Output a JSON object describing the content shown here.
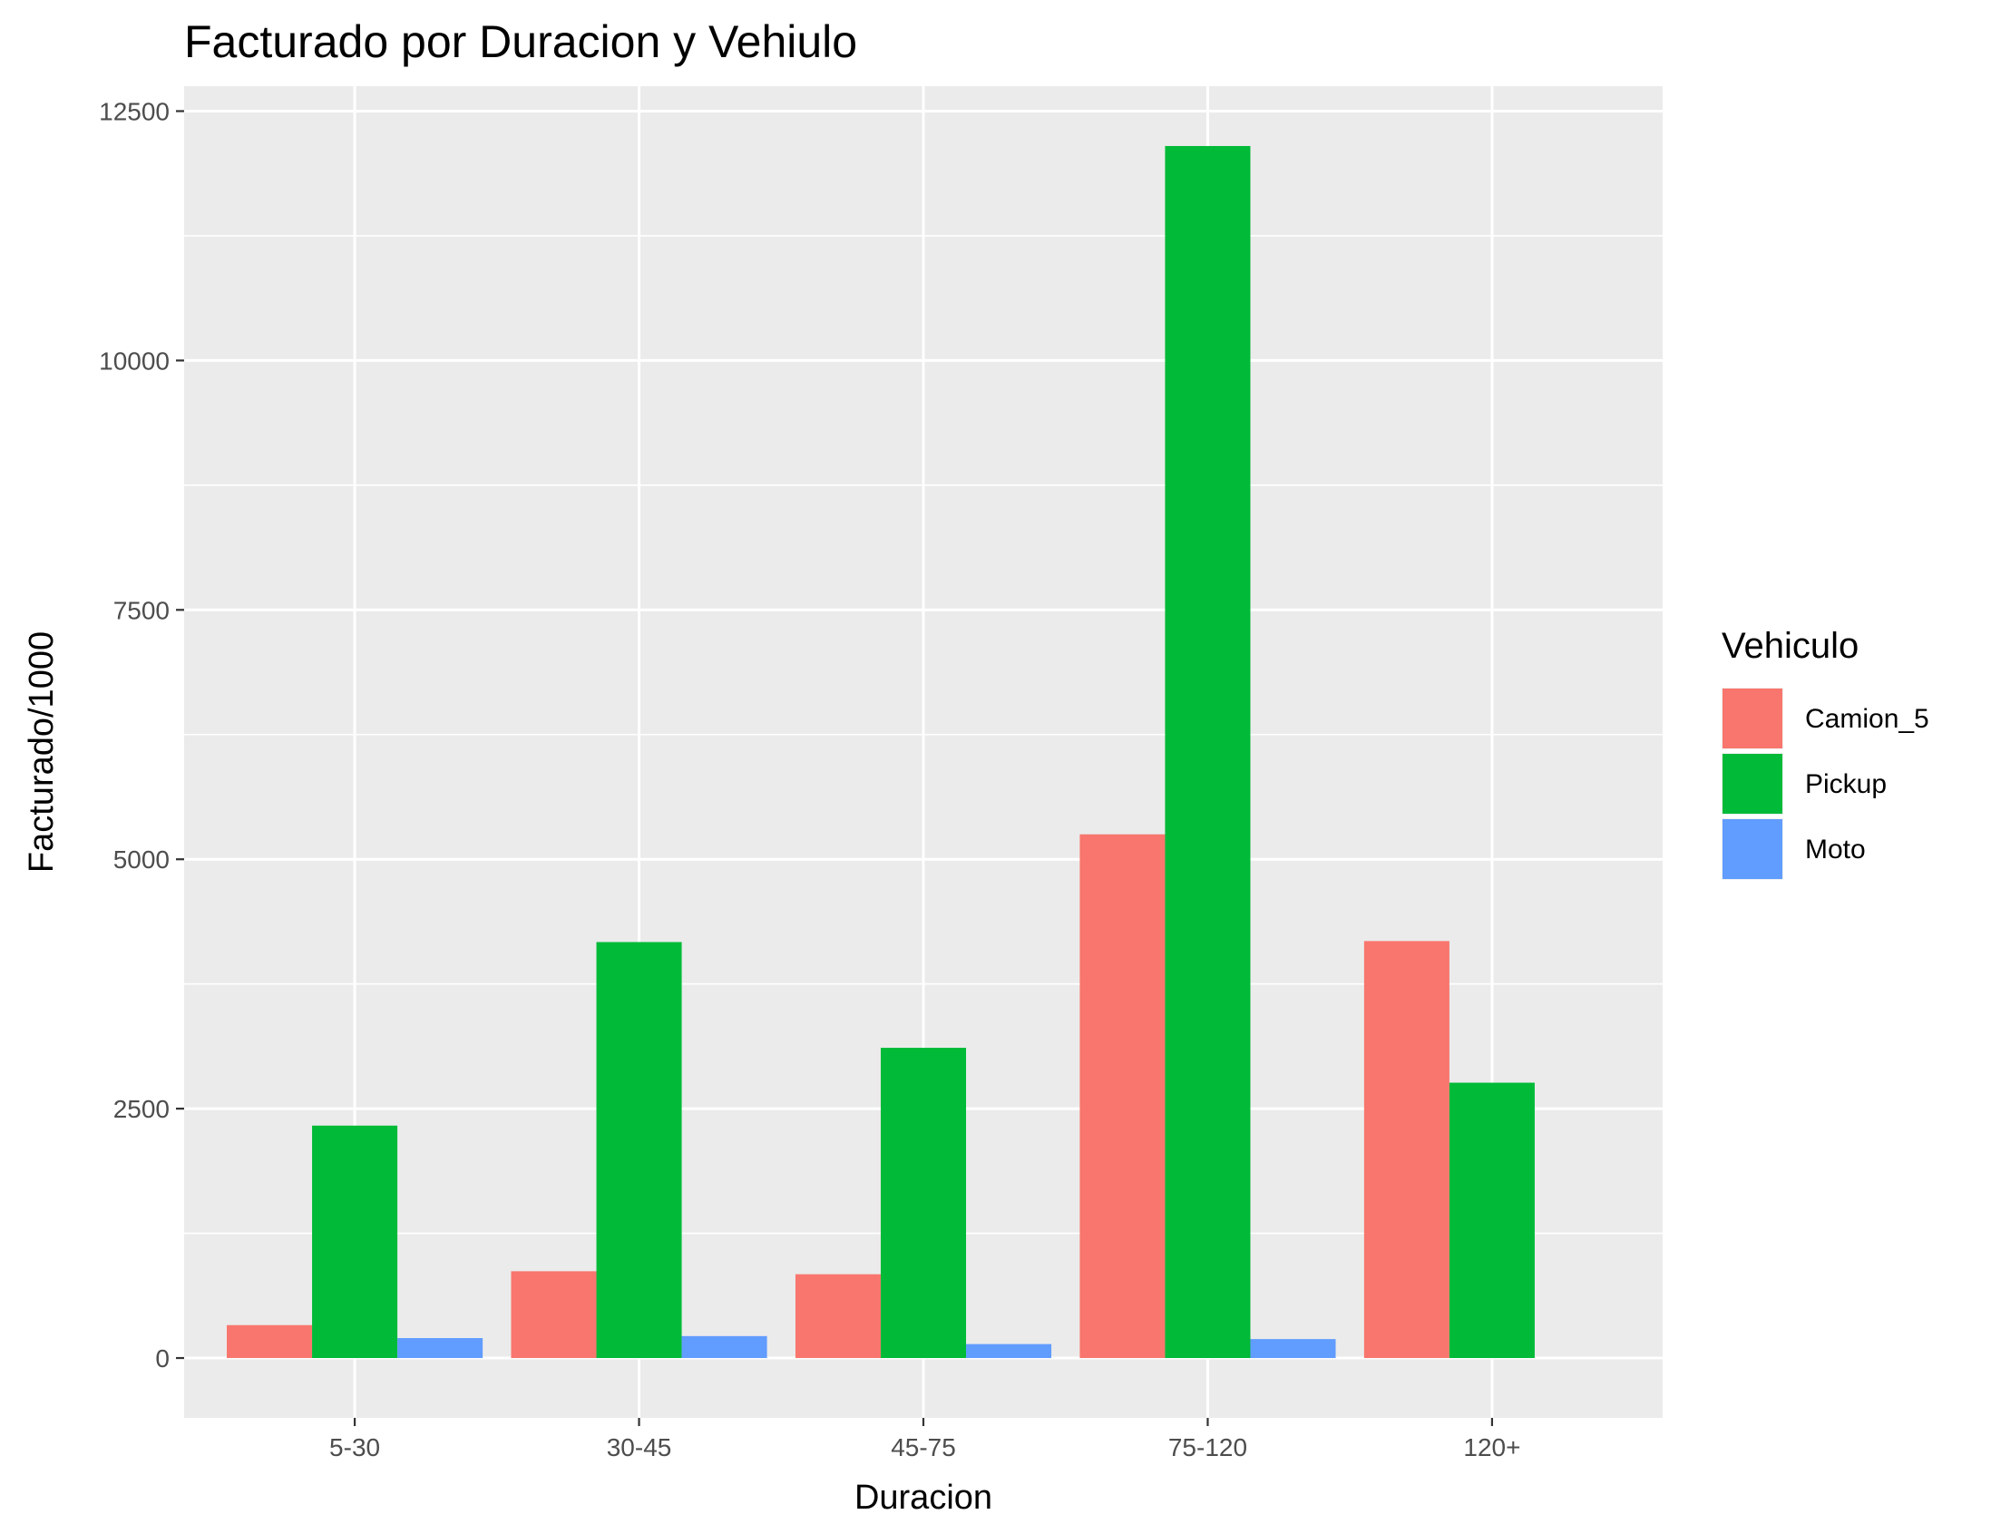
{
  "chart_data": {
    "type": "bar",
    "title": "Facturado por Duracion y Vehiulo",
    "xlabel": "Duracion",
    "ylabel": "Facturado/1000",
    "categories": [
      "5-30",
      "30-45",
      "45-75",
      "75-120",
      "120+"
    ],
    "series": [
      {
        "name": "Camion_5",
        "color": "#F8766D",
        "values": [
          330,
          870,
          840,
          5250,
          4180
        ]
      },
      {
        "name": "Pickup",
        "color": "#00BA38",
        "values": [
          2330,
          4170,
          3110,
          12150,
          2760
        ]
      },
      {
        "name": "Moto",
        "color": "#619CFF",
        "values": [
          200,
          220,
          140,
          190,
          0
        ]
      }
    ],
    "ylim": [
      -600,
      12750
    ],
    "yticks": [
      0,
      2500,
      5000,
      7500,
      10000,
      12500
    ],
    "ytick_labels": [
      "0",
      "2500",
      "5000",
      "7500",
      "10000",
      "12500"
    ],
    "grid": true,
    "panel_background": "#EBEBEB",
    "legend": {
      "title": "Vehiculo",
      "position": "right"
    }
  }
}
